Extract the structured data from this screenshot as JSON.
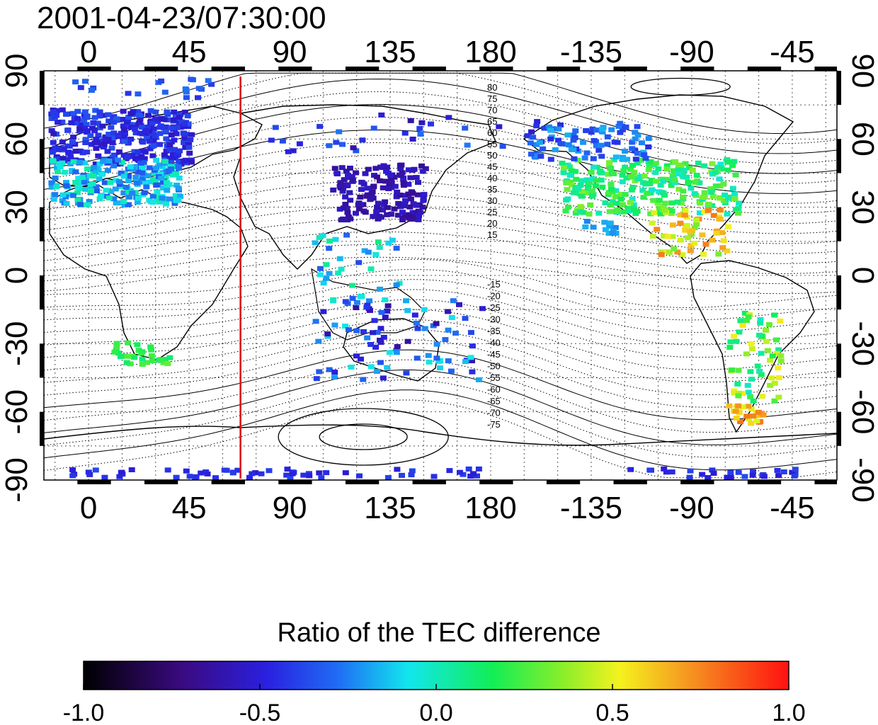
{
  "title": "2001-04-23/07:30:00",
  "map": {
    "lon_ticks": [
      0,
      45,
      90,
      135,
      180,
      -135,
      -90,
      -45
    ],
    "lat_ticks": [
      90,
      60,
      30,
      0,
      -30,
      -60,
      -90
    ],
    "lon_range": [
      -20,
      335
    ],
    "lat_range": [
      -90,
      90
    ],
    "marker_longitude": 68,
    "marker_color": "#dd1111",
    "contour_labels_north": [
      "80",
      "75",
      "70",
      "65",
      "60",
      "55",
      "50",
      "45",
      "40",
      "35",
      "30",
      "25",
      "20",
      "15"
    ],
    "contour_labels_south": [
      "-15",
      "-20",
      "-25",
      "-30",
      "-35",
      "-40",
      "-45",
      "-50",
      "-55",
      "-60",
      "-65",
      "-70",
      "-75"
    ]
  },
  "colorbar": {
    "title": "Ratio of the TEC difference",
    "min": -1.0,
    "max": 1.0,
    "tick_labels": [
      "-1.0",
      "-0.5",
      "0.0",
      "0.5",
      "1.0"
    ],
    "colormap": "black-purple-blue-cyan-green-yellow-red"
  }
}
